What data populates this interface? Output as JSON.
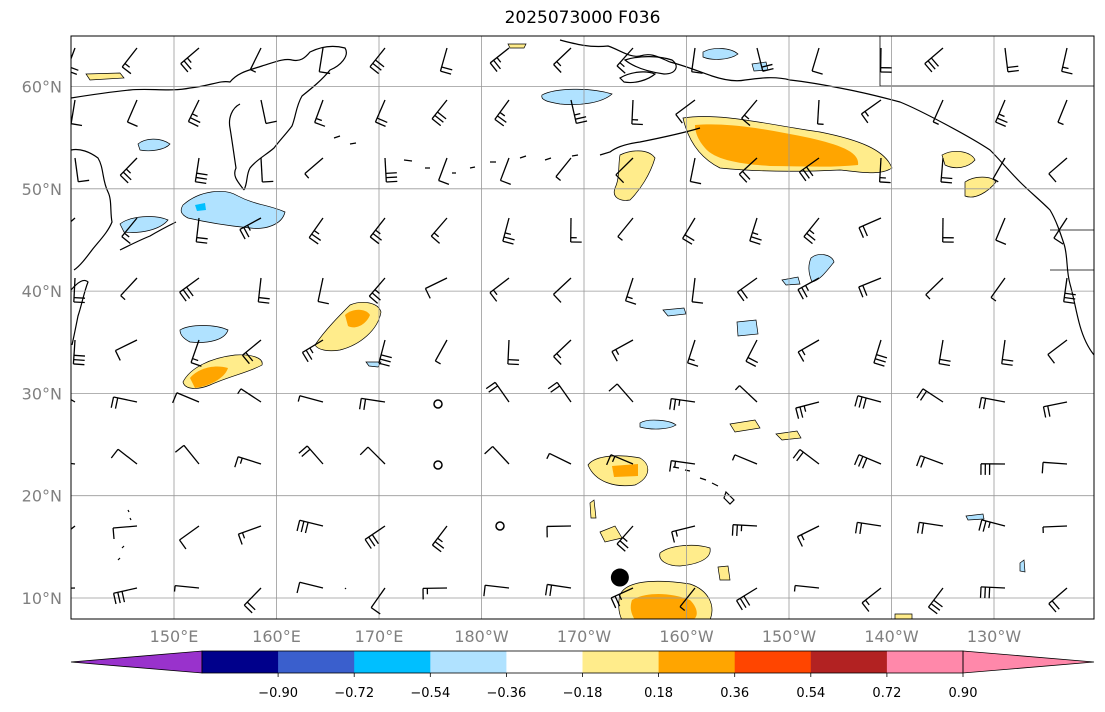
{
  "title": "2025073000 F036",
  "map": {
    "lon_range": [
      140,
      240
    ],
    "lat_range": [
      8,
      65
    ],
    "lat_ticks": [
      {
        "value": 10,
        "label": "10°N"
      },
      {
        "value": 20,
        "label": "20°N"
      },
      {
        "value": 30,
        "label": "30°N"
      },
      {
        "value": 40,
        "label": "40°N"
      },
      {
        "value": 50,
        "label": "50°N"
      },
      {
        "value": 60,
        "label": "60°N"
      }
    ],
    "lon_ticks": [
      {
        "value": 150,
        "label": "150°E"
      },
      {
        "value": 160,
        "label": "160°E"
      },
      {
        "value": 170,
        "label": "170°E"
      },
      {
        "value": 180,
        "label": "180°W"
      },
      {
        "value": 190,
        "label": "170°W"
      },
      {
        "value": 200,
        "label": "160°W"
      },
      {
        "value": 210,
        "label": "150°W"
      },
      {
        "value": 220,
        "label": "140°W"
      },
      {
        "value": 230,
        "label": "130°W"
      }
    ],
    "grid": true,
    "storm_marker": {
      "lon": 193.5,
      "lat": 12
    }
  },
  "colorbar": {
    "colors": [
      "#9932cc",
      "#00008b",
      "#3a5fcd",
      "#00bfff",
      "#b0e2ff",
      "#ffffff",
      "#ffec8b",
      "#ffa500",
      "#ff4500",
      "#b22222",
      "#ff88aa",
      "#ff88aa"
    ],
    "ticks": [
      "−0.90",
      "−0.72",
      "−0.54",
      "−0.36",
      "−0.18",
      "0.18",
      "0.36",
      "0.54",
      "0.72",
      "0.90"
    ]
  },
  "fill_colors": {
    "light_blue": "#b0e2ff",
    "blue": "#00bfff",
    "yellow": "#ffec8b",
    "orange": "#ffa500",
    "red_orange": "#ff4500"
  }
}
